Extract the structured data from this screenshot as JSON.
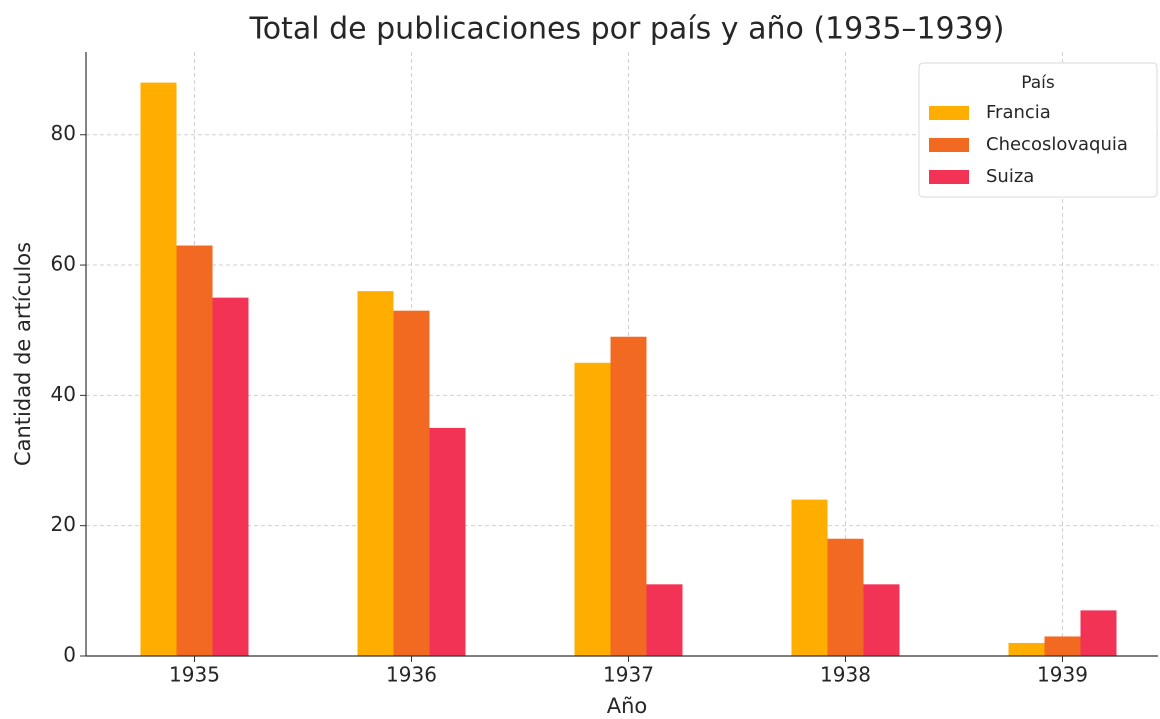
{
  "chart_data": {
    "type": "bar",
    "title": "Total de publicaciones por país y año (1935–1939)",
    "x_label": "Año",
    "y_label": "Cantidad de artículos",
    "categories": [
      "1935",
      "1936",
      "1937",
      "1938",
      "1939"
    ],
    "series": [
      {
        "name": "Francia",
        "color": "#ffae00",
        "values": [
          88,
          56,
          45,
          24,
          2
        ]
      },
      {
        "name": "Checoslovaquia",
        "color": "#f26a22",
        "values": [
          63,
          53,
          49,
          18,
          3
        ]
      },
      {
        "name": "Suiza",
        "color": "#f33355",
        "values": [
          55,
          35,
          11,
          11,
          7
        ]
      }
    ],
    "legend_title": "País",
    "legend": "upper right",
    "ylim": [
      0,
      92.7
    ],
    "yticks": [
      0,
      20,
      40,
      60,
      80
    ],
    "grid": true
  }
}
